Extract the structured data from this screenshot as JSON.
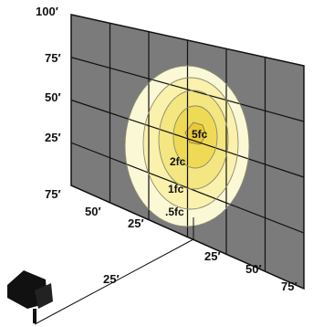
{
  "colors": {
    "wall_fill": "#7b7b7b",
    "grid_line": "#111111",
    "beam_outer": "#fbf8d6",
    "beam_middle": "#faf1ad",
    "beam_inner": "#f4e680",
    "beam_core": "#efda55",
    "contour": "#8a8a72",
    "fixture": "#111111"
  },
  "wall_labels": {
    "v100": "100′",
    "v75": "75′",
    "v50": "50′",
    "v25": "25′"
  },
  "floor_left_labels": {
    "l75": "75′",
    "l50": "50′",
    "l25": "25′"
  },
  "floor_right_labels": {
    "r25": "25′",
    "r50": "50′",
    "r75": "75′"
  },
  "throw_label": "25′",
  "contours": {
    "c5": "5fc",
    "c2": "2fc",
    "c1": "1fc",
    "c05": ".5fc"
  },
  "icons": {
    "fixture": "spotlight-icon"
  }
}
